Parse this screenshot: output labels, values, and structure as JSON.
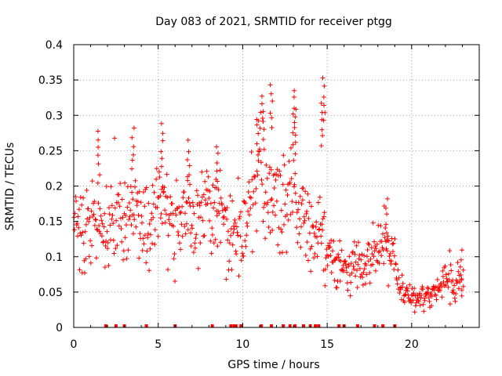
{
  "colors": {
    "series": "#ff0000",
    "grid": "#a0a0a0",
    "axis": "#000000"
  },
  "chart_data": {
    "type": "scatter",
    "title": "Day 083 of 2021, SRMTID for receiver ptgg",
    "xlabel": "GPS time / hours",
    "ylabel": "SRMTID / TECUs",
    "xlim": [
      0,
      24
    ],
    "ylim": [
      0,
      0.4
    ],
    "xticks": [
      0,
      5,
      10,
      15,
      20
    ],
    "xtick_labels": [
      "0",
      "5",
      "10",
      "15",
      "20"
    ],
    "yticks": [
      0,
      0.05,
      0.1,
      0.15,
      0.2,
      0.25,
      0.3,
      0.35,
      0.4
    ],
    "ytick_labels": [
      "0",
      "0.05",
      "0.1",
      "0.15",
      "0.2",
      "0.25",
      "0.3",
      "0.35",
      "0.4"
    ],
    "grid": true,
    "marker": "+",
    "series": [
      {
        "name": "SRMTID",
        "envelope_hours": [
          0,
          0.5,
          1,
          1.5,
          2,
          2.5,
          3,
          3.5,
          4,
          4.5,
          5,
          5.5,
          6,
          6.5,
          7,
          7.5,
          8,
          8.5,
          9,
          9.5,
          10,
          10.5,
          11,
          11.5,
          12,
          12.5,
          13,
          13.5,
          14,
          14.5,
          15,
          15.5,
          16,
          16.5,
          17,
          17.5,
          18,
          18.5,
          19,
          19.5,
          20,
          20.5,
          21,
          21.5,
          22,
          22.5,
          23
        ],
        "envelope_center": [
          0.15,
          0.13,
          0.14,
          0.15,
          0.14,
          0.15,
          0.14,
          0.16,
          0.15,
          0.15,
          0.17,
          0.16,
          0.13,
          0.15,
          0.16,
          0.15,
          0.17,
          0.16,
          0.14,
          0.13,
          0.14,
          0.17,
          0.22,
          0.18,
          0.17,
          0.16,
          0.18,
          0.15,
          0.14,
          0.15,
          0.1,
          0.09,
          0.09,
          0.08,
          0.09,
          0.09,
          0.12,
          0.11,
          0.09,
          0.05,
          0.04,
          0.04,
          0.045,
          0.05,
          0.065,
          0.06,
          0.08
        ],
        "envelope_spread": [
          0.04,
          0.05,
          0.05,
          0.05,
          0.05,
          0.05,
          0.05,
          0.05,
          0.05,
          0.05,
          0.06,
          0.05,
          0.05,
          0.05,
          0.05,
          0.05,
          0.05,
          0.05,
          0.05,
          0.05,
          0.05,
          0.06,
          0.07,
          0.06,
          0.05,
          0.05,
          0.07,
          0.05,
          0.05,
          0.05,
          0.03,
          0.03,
          0.03,
          0.03,
          0.03,
          0.03,
          0.04,
          0.04,
          0.03,
          0.02,
          0.015,
          0.015,
          0.015,
          0.015,
          0.02,
          0.02,
          0.02
        ],
        "peaks": [
          {
            "x": 1.5,
            "y": 0.28
          },
          {
            "x": 3.5,
            "y": 0.285
          },
          {
            "x": 5.2,
            "y": 0.29
          },
          {
            "x": 6.8,
            "y": 0.265
          },
          {
            "x": 8.5,
            "y": 0.26
          },
          {
            "x": 10.9,
            "y": 0.3
          },
          {
            "x": 11.2,
            "y": 0.33
          },
          {
            "x": 11.7,
            "y": 0.345
          },
          {
            "x": 13.0,
            "y": 0.34
          },
          {
            "x": 13.1,
            "y": 0.31
          },
          {
            "x": 14.8,
            "y": 0.355
          },
          {
            "x": 14.7,
            "y": 0.32
          },
          {
            "x": 18.5,
            "y": 0.185
          },
          {
            "x": 23.0,
            "y": 0.11
          }
        ],
        "gap_markers_hours": [
          1.9,
          2.5,
          3.0,
          4.3,
          6.0,
          8.2,
          9.3,
          9.5,
          9.6,
          9.9,
          11.1,
          11.7,
          12.4,
          12.8,
          13.1,
          13.6,
          14.0,
          14.3,
          14.5,
          15.7,
          16.0,
          16.8,
          17.8,
          18.3,
          19.0
        ]
      }
    ]
  }
}
